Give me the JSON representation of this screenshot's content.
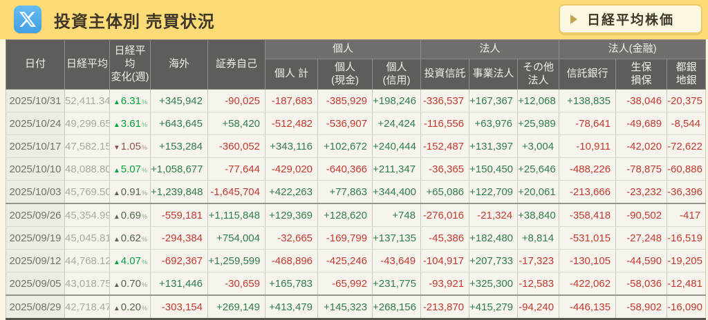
{
  "header": {
    "title": "投資主体別 売買状況",
    "x_icon": "x-logo",
    "nav_button": {
      "label": "日経平均株価",
      "arrow_icon": "right-triangle-icon"
    }
  },
  "colors": {
    "topbar_bg": "#FDDB76",
    "page_bg": "#FBF5DF",
    "header_cell_bg": "#5F5D5A",
    "group_cell_bg": "#706E6B",
    "row_bg": "#F6F4EC",
    "date_cell_bg": "#EDEBE3",
    "positive_green": "#2F7D4E",
    "negative_red": "#C13A30",
    "change_up_strong": "#00A33E",
    "change_up_weak": "#56674D",
    "change_down_weak": "#93504A",
    "x_badge_blue": "#54AAE9"
  },
  "table": {
    "fixed_columns": [
      {
        "key": "date",
        "label": [
          "日付"
        ]
      },
      {
        "key": "nikkei",
        "label": [
          "日経平均"
        ]
      },
      {
        "key": "change",
        "label": [
          "日経平均",
          "変化(週)"
        ]
      },
      {
        "key": "overseas",
        "label": [
          "海外"
        ]
      },
      {
        "key": "proprietary",
        "label": [
          "証券自己"
        ]
      }
    ],
    "groups": [
      {
        "label": "個人",
        "span": 3
      },
      {
        "label": "法人",
        "span": 3
      },
      {
        "label": "法人(金融)",
        "span": 3
      }
    ],
    "sub_columns": [
      {
        "key": "ind_total",
        "label": [
          "個人 計"
        ]
      },
      {
        "key": "ind_cash",
        "label": [
          "個人",
          "(現金)"
        ]
      },
      {
        "key": "ind_margin",
        "label": [
          "個人",
          "(信用)"
        ]
      },
      {
        "key": "inv_trust",
        "label": [
          "投資信託"
        ]
      },
      {
        "key": "biz_corp",
        "label": [
          "事業法人"
        ]
      },
      {
        "key": "other_corp",
        "label": [
          "その他",
          "法人"
        ]
      },
      {
        "key": "trust_bank",
        "label": [
          "信託銀行"
        ]
      },
      {
        "key": "insurance",
        "label": [
          "生保",
          "損保"
        ]
      },
      {
        "key": "banks",
        "label": [
          "都銀",
          "地銀"
        ]
      }
    ],
    "rows": [
      {
        "date": "2025/10/31",
        "nikkei": "52,411.34",
        "change": {
          "dir": "up",
          "value": "6.31",
          "emphasis": true
        },
        "values": [
          "+345,942",
          "-90,025",
          "-187,683",
          "-385,929",
          "+198,246",
          "-336,537",
          "+167,367",
          "+12,068",
          "+138,835",
          "-38,046",
          "-20,375"
        ],
        "separator_after": false
      },
      {
        "date": "2025/10/24",
        "nikkei": "49,299.65",
        "change": {
          "dir": "up",
          "value": "3.61",
          "emphasis": true
        },
        "values": [
          "+643,645",
          "+58,420",
          "-512,482",
          "-536,907",
          "+24,424",
          "-116,556",
          "+63,976",
          "+25,989",
          "-78,641",
          "-49,689",
          "-8,544"
        ],
        "separator_after": false
      },
      {
        "date": "2025/10/17",
        "nikkei": "47,582.15",
        "change": {
          "dir": "down",
          "value": "1.05",
          "emphasis": false
        },
        "values": [
          "+153,284",
          "-360,052",
          "+343,116",
          "+102,672",
          "+240,444",
          "-152,487",
          "+131,397",
          "+3,004",
          "-10,911",
          "-42,020",
          "-72,622"
        ],
        "separator_after": false
      },
      {
        "date": "2025/10/10",
        "nikkei": "48,088.80",
        "change": {
          "dir": "up",
          "value": "5.07",
          "emphasis": true
        },
        "values": [
          "+1,058,677",
          "-77,644",
          "-429,020",
          "-640,366",
          "+211,347",
          "-36,365",
          "+150,450",
          "+25,646",
          "-488,226",
          "-78,875",
          "-60,886"
        ],
        "separator_after": false
      },
      {
        "date": "2025/10/03",
        "nikkei": "45,769.50",
        "change": {
          "dir": "up",
          "value": "0.91",
          "emphasis": false
        },
        "values": [
          "+1,239,848",
          "-1,645,704",
          "+422,263",
          "+77,863",
          "+344,400",
          "+65,086",
          "+122,709",
          "+20,061",
          "-213,666",
          "-23,232",
          "-36,396"
        ],
        "separator_after": true
      },
      {
        "date": "2025/09/26",
        "nikkei": "45,354.99",
        "change": {
          "dir": "up",
          "value": "0.69",
          "emphasis": false
        },
        "values": [
          "-559,181",
          "+1,115,848",
          "+129,369",
          "+128,620",
          "+748",
          "-276,016",
          "-21,324",
          "+38,840",
          "-358,418",
          "-90,502",
          "-417"
        ],
        "separator_after": false
      },
      {
        "date": "2025/09/19",
        "nikkei": "45,045.81",
        "change": {
          "dir": "up",
          "value": "0.62",
          "emphasis": false
        },
        "values": [
          "-294,384",
          "+754,004",
          "-32,665",
          "-169,799",
          "+137,135",
          "-45,386",
          "+182,480",
          "+8,814",
          "-531,015",
          "-27,248",
          "-16,519"
        ],
        "separator_after": false
      },
      {
        "date": "2025/09/12",
        "nikkei": "44,768.12",
        "change": {
          "dir": "up",
          "value": "4.07",
          "emphasis": true
        },
        "values": [
          "-692,367",
          "+1,259,599",
          "-468,896",
          "-425,246",
          "-43,649",
          "-104,917",
          "+207,733",
          "-17,323",
          "-130,105",
          "-44,590",
          "-19,205"
        ],
        "separator_after": false
      },
      {
        "date": "2025/09/05",
        "nikkei": "43,018.75",
        "change": {
          "dir": "up",
          "value": "0.70",
          "emphasis": false
        },
        "values": [
          "+131,446",
          "-30,659",
          "+165,783",
          "-65,992",
          "+231,775",
          "-93,921",
          "+325,300",
          "-12,583",
          "-422,062",
          "-58,036",
          "-12,481"
        ],
        "separator_after": true
      },
      {
        "date": "2025/08/29",
        "nikkei": "42,718.47",
        "change": {
          "dir": "up",
          "value": "0.20",
          "emphasis": false
        },
        "values": [
          "-303,154",
          "+269,149",
          "+413,479",
          "+145,323",
          "+268,156",
          "-213,870",
          "+415,279",
          "-94,240",
          "-446,135",
          "-58,902",
          "-16,090"
        ],
        "separator_after": false
      }
    ]
  }
}
